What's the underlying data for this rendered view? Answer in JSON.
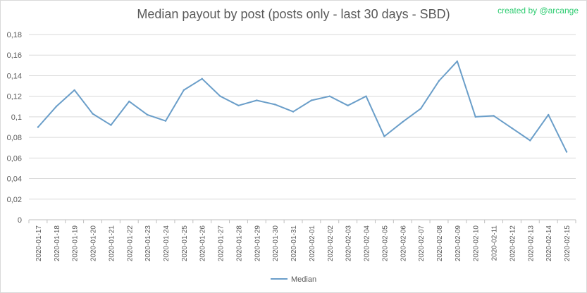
{
  "chart_data": {
    "type": "line",
    "title": "Median payout by post (posts only - last 30 days - SBD)",
    "credit": "created by @arcange",
    "xlabel": "",
    "ylabel": "",
    "ylim": [
      0,
      0.18
    ],
    "yticks": [
      "0",
      "0,02",
      "0,04",
      "0,06",
      "0,08",
      "0,1",
      "0,12",
      "0,14",
      "0,16",
      "0,18"
    ],
    "grid": true,
    "legend_position": "bottom",
    "categories": [
      "2020-01-17",
      "2020-01-18",
      "2020-01-19",
      "2020-01-20",
      "2020-01-21",
      "2020-01-22",
      "2020-01-23",
      "2020-01-24",
      "2020-01-25",
      "2020-01-26",
      "2020-01-27",
      "2020-01-28",
      "2020-01-29",
      "2020-01-30",
      "2020-01-31",
      "2020-02-01",
      "2020-02-02",
      "2020-02-03",
      "2020-02-04",
      "2020-02-05",
      "2020-02-06",
      "2020-02-07",
      "2020-02-08",
      "2020-02-09",
      "2020-02-10",
      "2020-02-11",
      "2020-02-12",
      "2020-02-13",
      "2020-02-14",
      "2020-02-15"
    ],
    "series": [
      {
        "name": "Median",
        "color": "#6a9ec9",
        "values": [
          0.09,
          0.11,
          0.126,
          0.103,
          0.092,
          0.115,
          0.102,
          0.096,
          0.126,
          0.137,
          0.12,
          0.111,
          0.116,
          0.112,
          0.105,
          0.116,
          0.12,
          0.111,
          0.12,
          0.081,
          0.095,
          0.108,
          0.135,
          0.154,
          0.1,
          0.101,
          0.089,
          0.077,
          0.102,
          0.066
        ]
      }
    ]
  }
}
